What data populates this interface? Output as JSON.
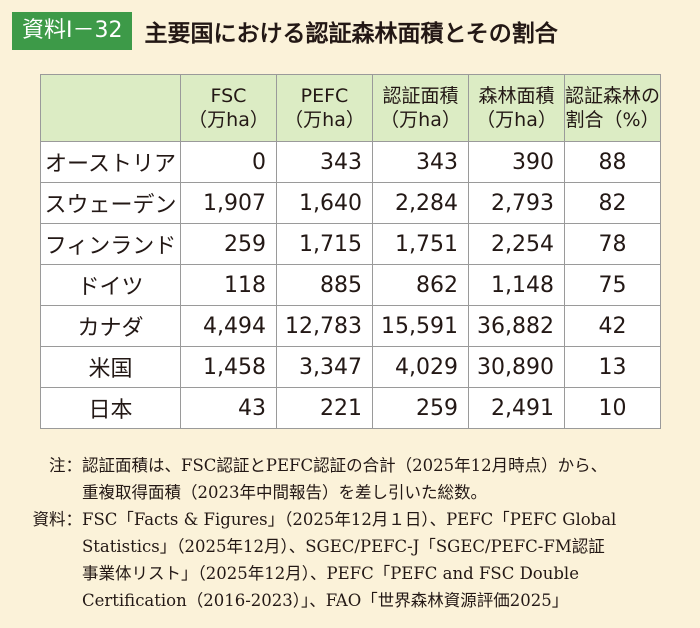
{
  "header": {
    "tag": "資料Ⅰ－32",
    "title": "主要国における認証森林面積とその割合"
  },
  "table": {
    "columns": [
      {
        "line1": "FSC",
        "line2": "（万ha）"
      },
      {
        "line1": "PEFC",
        "line2": "（万ha）"
      },
      {
        "line1": "認証面積",
        "line2": "（万ha）"
      },
      {
        "line1": "森林面積",
        "line2": "（万ha）"
      },
      {
        "line1": "認証森林の",
        "line2": "割合（%）"
      }
    ],
    "rows": [
      {
        "country": "オーストリア",
        "fsc": "0",
        "pefc": "343",
        "certified": "343",
        "forest": "390",
        "share": "88"
      },
      {
        "country": "スウェーデン",
        "fsc": "1,907",
        "pefc": "1,640",
        "certified": "2,284",
        "forest": "2,793",
        "share": "82"
      },
      {
        "country": "フィンランド",
        "fsc": "259",
        "pefc": "1,715",
        "certified": "1,751",
        "forest": "2,254",
        "share": "78"
      },
      {
        "country": "ドイツ",
        "fsc": "118",
        "pefc": "885",
        "certified": "862",
        "forest": "1,148",
        "share": "75"
      },
      {
        "country": "カナダ",
        "fsc": "4,494",
        "pefc": "12,783",
        "certified": "15,591",
        "forest": "36,882",
        "share": "42"
      },
      {
        "country": "米国",
        "fsc": "1,458",
        "pefc": "3,347",
        "certified": "4,029",
        "forest": "30,890",
        "share": "13"
      },
      {
        "country": "日本",
        "fsc": "43",
        "pefc": "221",
        "certified": "259",
        "forest": "2,491",
        "share": "10"
      }
    ]
  },
  "notes": {
    "note_label": "注：",
    "note_lines": [
      "認証面積は、FSC認証とPEFC認証の合計（2025年12月時点）から、",
      "重複取得面積（2023年中間報告）を差し引いた総数。"
    ],
    "source_label": "資料：",
    "source_lines": [
      "FSC「Facts & Figures」（2025年12月１日）、PEFC「PEFC Global",
      "Statistics」（2025年12月）、SGEC/PEFC-J「SGEC/PEFC-FM認証",
      "事業体リスト」（2025年12月）、PEFC「PEFC and FSC Double",
      "Certification（2016-2023）」、FAO「世界森林資源評価2025」"
    ]
  }
}
